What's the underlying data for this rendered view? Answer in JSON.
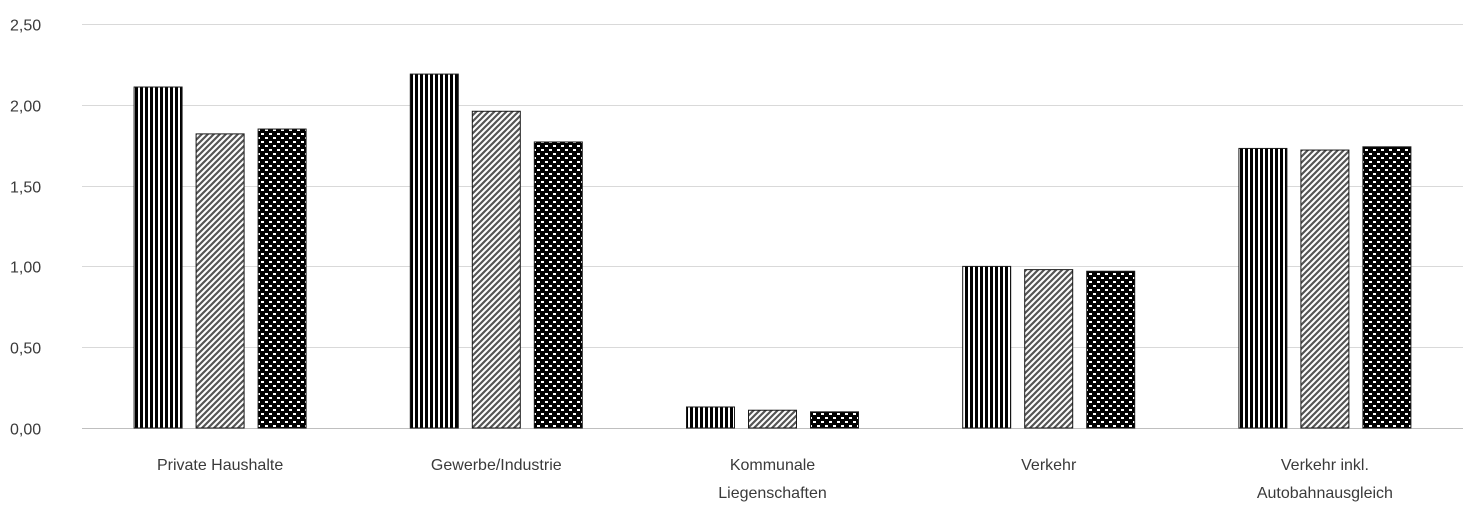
{
  "chart_data": {
    "type": "bar",
    "categories": [
      [
        "Private Haushalte"
      ],
      [
        "Gewerbe/Industrie"
      ],
      [
        "Kommunale",
        "Liegenschaften"
      ],
      [
        "Verkehr"
      ],
      [
        "Verkehr inkl.",
        "Autobahnausgleich"
      ]
    ],
    "series": [
      {
        "pattern": "vertical-stripes",
        "values": [
          2.11,
          2.19,
          0.13,
          1.0,
          1.73
        ]
      },
      {
        "pattern": "diagonal-hatch",
        "values": [
          1.82,
          1.96,
          0.11,
          0.98,
          1.72
        ]
      },
      {
        "pattern": "checkerboard",
        "values": [
          1.85,
          1.77,
          0.1,
          0.97,
          1.74
        ]
      }
    ],
    "yticks": [
      "0,00",
      "0,50",
      "1,00",
      "1,50",
      "2,00",
      "2,50"
    ],
    "ylim": [
      0,
      2.5
    ],
    "title": "",
    "xlabel": "",
    "ylabel": "",
    "grid": true,
    "legend": "none",
    "colors": {
      "bar": "#000000",
      "grid": "#d9d9d9",
      "text": "#3a3a3a"
    }
  }
}
